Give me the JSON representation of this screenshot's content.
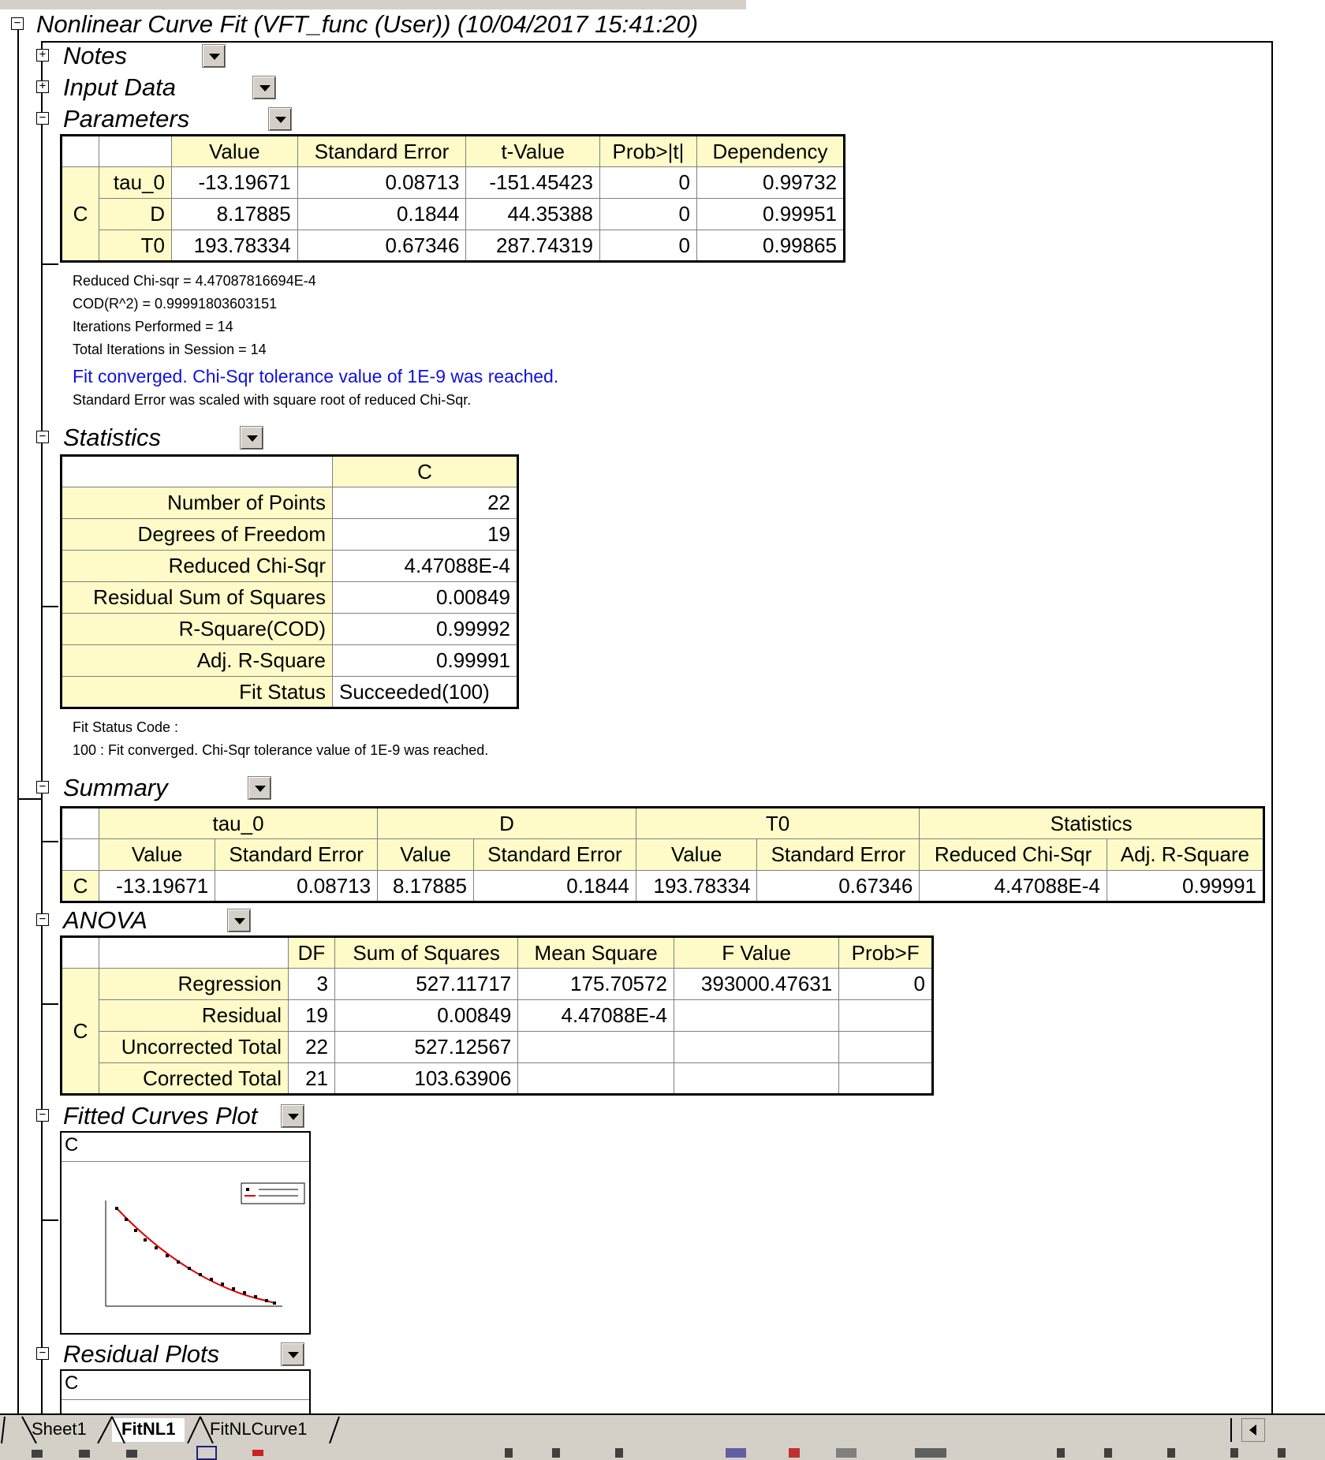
{
  "report": {
    "title": "Nonlinear Curve Fit (VFT_func (User)) (10/04/2017 15:41:20)"
  },
  "sections": {
    "notes": "Notes",
    "input_data": "Input Data",
    "parameters": "Parameters",
    "statistics": "Statistics",
    "summary": "Summary",
    "anova": "ANOVA",
    "fitted_curves": "Fitted Curves Plot",
    "residual_plots": "Residual Plots"
  },
  "toggles": {
    "expand": "+",
    "collapse": "−"
  },
  "parameters": {
    "headers": [
      "Value",
      "Standard Error",
      "t-Value",
      "Prob>|t|",
      "Dependency"
    ],
    "group": "C",
    "rows": [
      {
        "name": "tau_0",
        "cells": [
          "-13.19671",
          "0.08713",
          "-151.45423",
          "0",
          "0.99732"
        ]
      },
      {
        "name": "D",
        "cells": [
          "8.17885",
          "0.1844",
          "44.35388",
          "0",
          "0.99951"
        ]
      },
      {
        "name": "T0",
        "cells": [
          "193.78334",
          "0.67346",
          "287.74319",
          "0",
          "0.99865"
        ]
      }
    ]
  },
  "fit_notes": {
    "line1": "Reduced Chi-sqr = 4.47087816694E-4",
    "line2": "COD(R^2) = 0.99991803603151",
    "line3": "Iterations Performed = 14",
    "line4": "Total Iterations in Session = 14",
    "converged": "Fit converged. Chi-Sqr tolerance value of 1E-9 was reached.",
    "scaled": "Standard Error was scaled with square root of reduced Chi-Sqr."
  },
  "statistics": {
    "col_header": "C",
    "rows": [
      {
        "label": "Number of Points",
        "value": "22"
      },
      {
        "label": "Degrees of Freedom",
        "value": "19"
      },
      {
        "label": "Reduced Chi-Sqr",
        "value": "4.47088E-4"
      },
      {
        "label": "Residual Sum of Squares",
        "value": "0.00849"
      },
      {
        "label": "R-Square(COD)",
        "value": "0.99992"
      },
      {
        "label": "Adj. R-Square",
        "value": "0.99991"
      },
      {
        "label": "Fit Status",
        "value": "Succeeded(100)"
      }
    ],
    "code_label": "Fit Status Code :",
    "code_desc": "100 : Fit converged. Chi-Sqr tolerance value of 1E-9 was reached."
  },
  "summary": {
    "groups": [
      "tau_0",
      "D",
      "T0",
      "Statistics"
    ],
    "subheaders": [
      "Value",
      "Standard Error",
      "Value",
      "Standard Error",
      "Value",
      "Standard Error",
      "Reduced Chi-Sqr",
      "Adj. R-Square"
    ],
    "row_label": "C",
    "values": [
      "-13.19671",
      "0.08713",
      "8.17885",
      "0.1844",
      "193.78334",
      "0.67346",
      "4.47088E-4",
      "0.99991"
    ]
  },
  "anova": {
    "headers": [
      "DF",
      "Sum of Squares",
      "Mean Square",
      "F Value",
      "Prob>F"
    ],
    "group": "C",
    "rows": [
      {
        "name": "Regression",
        "cells": [
          "3",
          "527.11717",
          "175.70572",
          "393000.47631",
          "0"
        ]
      },
      {
        "name": "Residual",
        "cells": [
          "19",
          "0.00849",
          "4.47088E-4",
          "",
          ""
        ]
      },
      {
        "name": "Uncorrected Total",
        "cells": [
          "22",
          "527.12567",
          "",
          "",
          ""
        ]
      },
      {
        "name": "Corrected Total",
        "cells": [
          "21",
          "103.63906",
          "",
          "",
          ""
        ]
      }
    ]
  },
  "plots": {
    "fitted_label": "C",
    "residual_label": "C"
  },
  "tabs": [
    "Sheet1",
    "FitNL1",
    "FitNLCurve1"
  ],
  "active_tab": "FitNL1",
  "colors": {
    "header_bg": "#fffbc8",
    "note_blue": "#1010e0",
    "fit_line": "#e00000",
    "chrome": "#d4d0c8"
  }
}
